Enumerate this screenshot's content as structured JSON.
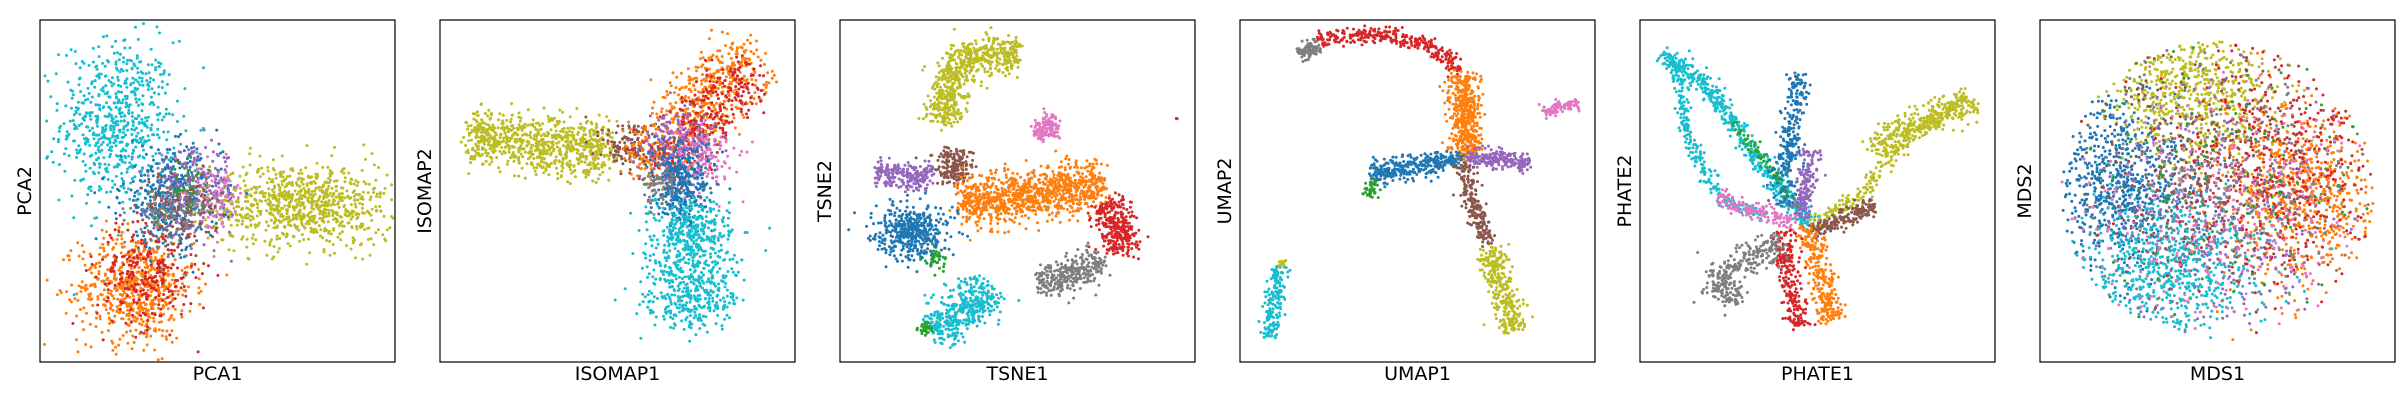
{
  "palette": {
    "blue": "#1f77b4",
    "orange": "#ff7f0e",
    "green": "#2ca02c",
    "red": "#d62728",
    "purple": "#9467bd",
    "brown": "#8c564b",
    "pink": "#e377c2",
    "gray": "#7f7f7f",
    "olive": "#bcbd22",
    "cyan": "#17becf"
  },
  "chart_data": [
    {
      "type": "scatter",
      "title": "",
      "xlabel": "PCA1",
      "ylabel": "PCA2",
      "xlim": [
        0,
        100
      ],
      "ylim": [
        0,
        100
      ],
      "ticks": "none",
      "grid": false,
      "series": [
        {
          "color": "cyan",
          "center": [
            22,
            70
          ],
          "spread": [
            8,
            12
          ],
          "count": 650
        },
        {
          "color": "orange",
          "center": [
            27,
            22
          ],
          "spread": [
            8,
            8
          ],
          "count": 650
        },
        {
          "color": "red",
          "center": [
            30,
            26
          ],
          "spread": [
            7,
            8
          ],
          "count": 260
        },
        {
          "color": "olive",
          "center": [
            74,
            46
          ],
          "spread": [
            13,
            6
          ],
          "count": 850
        },
        {
          "color": "blue",
          "center": [
            37,
            48
          ],
          "spread": [
            7,
            7
          ],
          "count": 420
        },
        {
          "color": "purple",
          "center": [
            44,
            50
          ],
          "spread": [
            6,
            6
          ],
          "count": 200
        },
        {
          "color": "pink",
          "center": [
            48,
            48
          ],
          "spread": [
            5,
            5
          ],
          "count": 120
        },
        {
          "color": "brown",
          "center": [
            40,
            45
          ],
          "spread": [
            5,
            5
          ],
          "count": 120
        },
        {
          "color": "gray",
          "center": [
            36,
            43
          ],
          "spread": [
            5,
            5
          ],
          "count": 100
        },
        {
          "color": "green",
          "center": [
            42,
            52
          ],
          "spread": [
            4,
            4
          ],
          "count": 40
        }
      ]
    },
    {
      "type": "scatter",
      "title": "",
      "xlabel": "ISOMAP1",
      "ylabel": "ISOMAP2",
      "xlim": [
        0,
        100
      ],
      "ylim": [
        0,
        100
      ],
      "ticks": "none",
      "grid": false,
      "series": [
        {
          "color": "olive",
          "path": [
            [
              8,
              66
            ],
            [
              30,
              63
            ],
            [
              48,
              62
            ]
          ],
          "width": 4,
          "count": 800
        },
        {
          "color": "brown",
          "center": [
            54,
            63
          ],
          "spread": [
            4,
            4
          ],
          "count": 140
        },
        {
          "color": "orange",
          "path": [
            [
              58,
              55
            ],
            [
              72,
              75
            ],
            [
              89,
              90
            ]
          ],
          "width": 5,
          "count": 600
        },
        {
          "color": "red",
          "path": [
            [
              62,
              55
            ],
            [
              75,
              72
            ],
            [
              88,
              86
            ]
          ],
          "width": 4,
          "count": 350
        },
        {
          "color": "purple",
          "center": [
            68,
            62
          ],
          "spread": [
            5,
            6
          ],
          "count": 220
        },
        {
          "color": "pink",
          "center": [
            74,
            60
          ],
          "spread": [
            5,
            5
          ],
          "count": 140
        },
        {
          "color": "blue",
          "center": [
            68,
            52
          ],
          "spread": [
            4,
            6
          ],
          "count": 380
        },
        {
          "color": "cyan",
          "path": [
            [
              70,
              45
            ],
            [
              72,
              30
            ],
            [
              70,
              12
            ]
          ],
          "width": 6,
          "count": 750
        },
        {
          "color": "gray",
          "center": [
            62,
            52
          ],
          "spread": [
            3,
            3
          ],
          "count": 60
        }
      ]
    },
    {
      "type": "scatter",
      "title": "",
      "xlabel": "TSNE1",
      "ylabel": "TSNE2",
      "xlim": [
        0,
        100
      ],
      "ylim": [
        0,
        100
      ],
      "ticks": "none",
      "grid": false,
      "series": [
        {
          "color": "olive",
          "path": [
            [
              30,
              70
            ],
            [
              30,
              84
            ],
            [
              40,
              91
            ],
            [
              50,
              89
            ]
          ],
          "width": 2.5,
          "count": 650
        },
        {
          "color": "brown",
          "path": [
            [
              32,
              62
            ],
            [
              32,
              53
            ]
          ],
          "width": 2.5,
          "count": 180
        },
        {
          "color": "pink",
          "path": [
            [
              55,
              67
            ],
            [
              61,
              70
            ]
          ],
          "width": 1.6,
          "count": 130
        },
        {
          "color": "purple",
          "path": [
            [
              10,
              55
            ],
            [
              26,
              54
            ]
          ],
          "width": 1.8,
          "count": 220
        },
        {
          "color": "orange",
          "path": [
            [
              34,
              47
            ],
            [
              50,
              48
            ],
            [
              66,
              51
            ],
            [
              74,
              52
            ]
          ],
          "width": 3.5,
          "count": 950
        },
        {
          "color": "blue",
          "center": [
            20,
            38
          ],
          "spread": [
            5,
            4
          ],
          "count": 450
        },
        {
          "color": "green",
          "center": [
            27,
            30
          ],
          "spread": [
            1.5,
            1.5
          ],
          "count": 40
        },
        {
          "color": "red",
          "path": [
            [
              74,
              46
            ],
            [
              80,
              40
            ],
            [
              78,
              32
            ]
          ],
          "width": 2.5,
          "count": 320
        },
        {
          "color": "gray",
          "path": [
            [
              56,
              24
            ],
            [
              66,
              25
            ],
            [
              74,
              30
            ]
          ],
          "width": 2.2,
          "count": 300
        },
        {
          "color": "cyan",
          "path": [
            [
              25,
              10
            ],
            [
              34,
              13
            ],
            [
              42,
              22
            ]
          ],
          "width": 3,
          "count": 420
        },
        {
          "color": "green",
          "center": [
            24,
            10
          ],
          "spread": [
            1,
            1
          ],
          "count": 30
        },
        {
          "color": "red",
          "center": [
            95,
            71
          ],
          "spread": [
            0.3,
            0.3
          ],
          "count": 2
        }
      ]
    },
    {
      "type": "scatter",
      "title": "",
      "xlabel": "UMAP1",
      "ylabel": "UMAP2",
      "xlim": [
        0,
        100
      ],
      "ylim": [
        0,
        100
      ],
      "ticks": "none",
      "grid": false,
      "series": [
        {
          "color": "gray",
          "path": [
            [
              17,
              90
            ],
            [
              22,
              93
            ]
          ],
          "width": 1.2,
          "count": 80
        },
        {
          "color": "red",
          "path": [
            [
              22,
              94
            ],
            [
              40,
              96
            ],
            [
              55,
              92
            ],
            [
              62,
              85
            ]
          ],
          "width": 1.2,
          "count": 300
        },
        {
          "color": "orange",
          "path": [
            [
              62,
              84
            ],
            [
              64,
              70
            ],
            [
              64,
              60
            ]
          ],
          "width": 2.2,
          "count": 450
        },
        {
          "color": "pink",
          "path": [
            [
              85,
              73
            ],
            [
              95,
              76
            ]
          ],
          "width": 1.0,
          "count": 90
        },
        {
          "color": "purple",
          "path": [
            [
              64,
              60
            ],
            [
              75,
              59
            ],
            [
              82,
              58
            ]
          ],
          "width": 1.3,
          "count": 220
        },
        {
          "color": "blue",
          "path": [
            [
              37,
              55
            ],
            [
              50,
              57
            ],
            [
              62,
              60
            ]
          ],
          "width": 1.6,
          "count": 320
        },
        {
          "color": "green",
          "path": [
            [
              36,
              48
            ],
            [
              38,
              53
            ]
          ],
          "width": 0.8,
          "count": 40
        },
        {
          "color": "brown",
          "path": [
            [
              63,
              58
            ],
            [
              66,
              45
            ],
            [
              70,
              34
            ]
          ],
          "width": 1.2,
          "count": 200
        },
        {
          "color": "olive",
          "path": [
            [
              70,
              33
            ],
            [
              74,
              20
            ],
            [
              77,
              9
            ]
          ],
          "width": 1.8,
          "count": 320
        },
        {
          "color": "cyan",
          "path": [
            [
              11,
              28
            ],
            [
              9,
              15
            ],
            [
              8,
              7
            ]
          ],
          "width": 1.2,
          "count": 180
        },
        {
          "color": "olive",
          "center": [
            12,
            29
          ],
          "spread": [
            0.6,
            0.6
          ],
          "count": 12
        }
      ]
    },
    {
      "type": "scatter",
      "title": "",
      "xlabel": "PHATE1",
      "ylabel": "PHATE2",
      "xlim": [
        0,
        100
      ],
      "ylim": [
        0,
        100
      ],
      "ticks": "none",
      "grid": false,
      "series": [
        {
          "color": "cyan",
          "path": [
            [
              6,
              90
            ],
            [
              18,
              82
            ],
            [
              30,
              64
            ],
            [
              40,
              50
            ],
            [
              48,
              40
            ]
          ],
          "width": 1.4,
          "count": 500
        },
        {
          "color": "cyan",
          "path": [
            [
              10,
              88
            ],
            [
              14,
              65
            ],
            [
              22,
              48
            ],
            [
              35,
              42
            ]
          ],
          "width": 1.0,
          "count": 250
        },
        {
          "color": "green",
          "path": [
            [
              26,
              70
            ],
            [
              36,
              58
            ],
            [
              44,
              45
            ]
          ],
          "width": 0.8,
          "count": 70
        },
        {
          "color": "olive",
          "path": [
            [
              48,
              40
            ],
            [
              62,
              48
            ],
            [
              70,
              60
            ],
            [
              78,
              68
            ],
            [
              92,
              78
            ]
          ],
          "width": 1.3,
          "count": 300
        },
        {
          "color": "olive",
          "path": [
            [
              65,
              62
            ],
            [
              75,
              69
            ],
            [
              85,
              72
            ],
            [
              95,
              76
            ]
          ],
          "width": 2.0,
          "count": 260
        },
        {
          "color": "blue",
          "path": [
            [
              40,
              46
            ],
            [
              43,
              70
            ],
            [
              45,
              84
            ]
          ],
          "width": 1.8,
          "count": 260
        },
        {
          "color": "purple",
          "path": [
            [
              45,
              42
            ],
            [
              47,
              52
            ],
            [
              48,
              62
            ]
          ],
          "width": 1.4,
          "count": 160
        },
        {
          "color": "pink",
          "path": [
            [
              22,
              48
            ],
            [
              32,
              44
            ],
            [
              44,
              41
            ]
          ],
          "width": 1.2,
          "count": 150
        },
        {
          "color": "brown",
          "path": [
            [
              48,
              38
            ],
            [
              58,
              42
            ],
            [
              66,
              46
            ]
          ],
          "width": 1.2,
          "count": 180
        },
        {
          "color": "orange",
          "path": [
            [
              47,
              40
            ],
            [
              50,
              30
            ],
            [
              54,
              12
            ]
          ],
          "width": 1.7,
          "count": 260
        },
        {
          "color": "red",
          "path": [
            [
              40,
              38
            ],
            [
              42,
              24
            ],
            [
              45,
              10
            ]
          ],
          "width": 1.6,
          "count": 230
        },
        {
          "color": "gray",
          "path": [
            [
              40,
              34
            ],
            [
              30,
              30
            ],
            [
              20,
              24
            ],
            [
              28,
              18
            ]
          ],
          "width": 2.2,
          "count": 300
        }
      ]
    },
    {
      "type": "scatter",
      "title": "",
      "xlabel": "MDS1",
      "ylabel": "MDS2",
      "xlim": [
        0,
        100
      ],
      "ylim": [
        0,
        100
      ],
      "ticks": "none",
      "grid": false,
      "series": [
        {
          "color": "blue",
          "center": [
            22,
            52
          ],
          "spread": [
            10,
            13
          ],
          "count": 700,
          "clip": [
            50,
            50,
            44
          ]
        },
        {
          "color": "olive",
          "center": [
            44,
            78
          ],
          "spread": [
            12,
            9
          ],
          "count": 600,
          "clip": [
            50,
            50,
            44
          ]
        },
        {
          "color": "orange",
          "center": [
            74,
            48
          ],
          "spread": [
            11,
            13
          ],
          "count": 700,
          "clip": [
            50,
            50,
            44
          ]
        },
        {
          "color": "cyan",
          "center": [
            38,
            28
          ],
          "spread": [
            13,
            10
          ],
          "count": 650,
          "clip": [
            50,
            50,
            44
          ]
        },
        {
          "color": "red",
          "center": [
            66,
            60
          ],
          "spread": [
            16,
            18
          ],
          "count": 450,
          "clip": [
            50,
            50,
            44
          ]
        },
        {
          "color": "purple",
          "center": [
            55,
            45
          ],
          "spread": [
            18,
            18
          ],
          "count": 350,
          "clip": [
            50,
            50,
            44
          ]
        },
        {
          "color": "brown",
          "center": [
            45,
            55
          ],
          "spread": [
            18,
            18
          ],
          "count": 300,
          "clip": [
            50,
            50,
            44
          ]
        },
        {
          "color": "pink",
          "center": [
            50,
            45
          ],
          "spread": [
            20,
            20
          ],
          "count": 300,
          "clip": [
            50,
            50,
            44
          ]
        },
        {
          "color": "gray",
          "center": [
            50,
            50
          ],
          "spread": [
            20,
            20
          ],
          "count": 250,
          "clip": [
            50,
            50,
            44
          ]
        },
        {
          "color": "green",
          "center": [
            50,
            55
          ],
          "spread": [
            20,
            20
          ],
          "count": 120,
          "clip": [
            50,
            50,
            44
          ]
        }
      ]
    }
  ]
}
